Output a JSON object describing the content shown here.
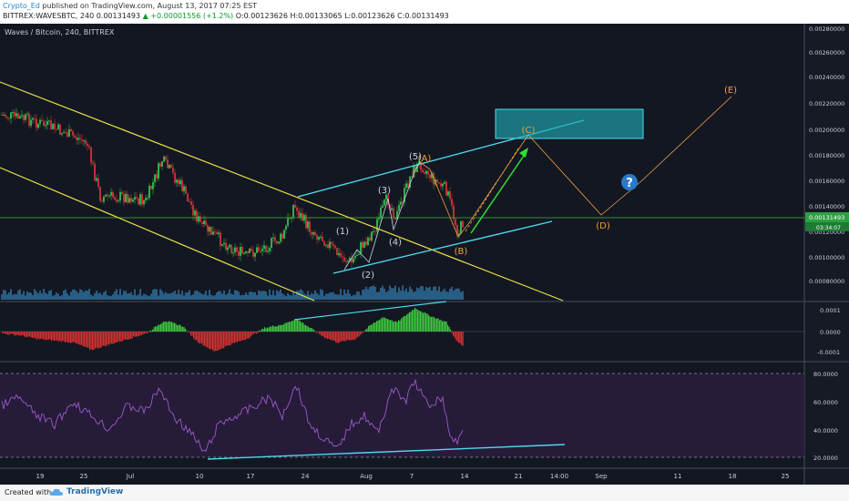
{
  "header": {
    "author": "Crypto_Ed",
    "published_text": "published on TradingView.com, August 13, 2017 07:25 EST",
    "symbol_line": "BITTREX:WAVESBTC, 240  0.00131493",
    "change": "▲ +0.00001556 (+1.2%)",
    "ohlc": "O:0.00123626 H:0.00133065 L:0.00123626 C:0.00131493"
  },
  "pane_title": "Waves / Bitcoin, 240, BITTREX",
  "price_axis": {
    "ticks": [
      "0.00280000",
      "0.00260000",
      "0.00240000",
      "0.00220000",
      "0.00200000",
      "0.00180000",
      "0.00160000",
      "0.00140000",
      "0.00120000",
      "0.00100000",
      "0.00080000"
    ],
    "current_price": "0.00131493",
    "countdown": "03:34:07"
  },
  "macd_axis": {
    "ticks": [
      "0.0001",
      "0.0000",
      "-0.0001"
    ]
  },
  "rsi_axis": {
    "ticks": [
      "80.0000",
      "60.0000",
      "40.0000",
      "20.0000"
    ]
  },
  "time_axis": {
    "ticks": [
      "19",
      "25",
      "Jul",
      "10",
      "17",
      "24",
      "Aug",
      "7",
      "14",
      "21",
      "14:00",
      "Sep",
      "11",
      "18",
      "25"
    ]
  },
  "wave_labels": {
    "w1": "(1)",
    "w2": "(2)",
    "w3": "(3)",
    "w4": "(4)",
    "w5": "(5)",
    "a": "(A)",
    "b": "(B)",
    "c": "(C)",
    "d": "(D)",
    "e": "(E)",
    "question": "?"
  },
  "footer": {
    "created_with": "Created with",
    "brand": "TradingView"
  },
  "colors": {
    "background": "#131722",
    "channel_yellow": "#e8e24a",
    "channel_cyan": "#4dd8ec",
    "wave_white": "#c8d4e4",
    "wave_orange": "#f0a040",
    "arrow_green": "#33dd33",
    "up_candle": "#39d353",
    "down_candle": "#e23a3a",
    "rsi_line": "#9c59c9",
    "price_line": "#3fb93f",
    "target_box": "#1fa8b0",
    "question_badge": "#2a78c8"
  }
}
